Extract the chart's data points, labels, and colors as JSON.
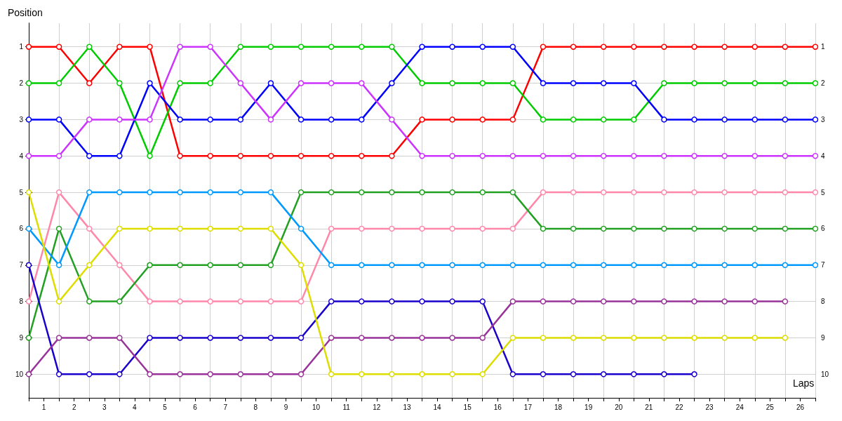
{
  "chart_data": {
    "type": "line",
    "xlabel": "Laps",
    "ylabel": "Position",
    "marker": "circle",
    "grid": true,
    "x": [
      0,
      1,
      2,
      3,
      4,
      5,
      6,
      7,
      8,
      9,
      10,
      11,
      12,
      13,
      14,
      15,
      16,
      17,
      18,
      19,
      20,
      21,
      22,
      23,
      24,
      25,
      26
    ],
    "xlim": [
      0,
      26
    ],
    "xticks": [
      {
        "value": 0,
        "label": null
      },
      {
        "value": 0.5,
        "label": "1"
      },
      {
        "value": 1,
        "label": null
      },
      {
        "value": 1.5,
        "label": "2"
      },
      {
        "value": 2,
        "label": null
      },
      {
        "value": 2.5,
        "label": "3"
      },
      {
        "value": 3,
        "label": null
      },
      {
        "value": 3.5,
        "label": "4"
      },
      {
        "value": 4,
        "label": null
      },
      {
        "value": 4.5,
        "label": "5"
      },
      {
        "value": 5,
        "label": null
      },
      {
        "value": 5.5,
        "label": "6"
      },
      {
        "value": 6,
        "label": null
      },
      {
        "value": 6.5,
        "label": "7"
      },
      {
        "value": 7,
        "label": null
      },
      {
        "value": 7.5,
        "label": "8"
      },
      {
        "value": 8,
        "label": null
      },
      {
        "value": 8.5,
        "label": "9"
      },
      {
        "value": 9,
        "label": null
      },
      {
        "value": 9.5,
        "label": "10"
      },
      {
        "value": 10,
        "label": null
      },
      {
        "value": 10.5,
        "label": "11"
      },
      {
        "value": 11,
        "label": null
      },
      {
        "value": 11.5,
        "label": "12"
      },
      {
        "value": 12,
        "label": null
      },
      {
        "value": 12.5,
        "label": "13"
      },
      {
        "value": 13,
        "label": null
      },
      {
        "value": 13.5,
        "label": "14"
      },
      {
        "value": 14,
        "label": null
      },
      {
        "value": 14.5,
        "label": "15"
      },
      {
        "value": 15,
        "label": null
      },
      {
        "value": 15.5,
        "label": "16"
      },
      {
        "value": 16,
        "label": null
      },
      {
        "value": 16.5,
        "label": "17"
      },
      {
        "value": 17,
        "label": null
      },
      {
        "value": 17.5,
        "label": "18"
      },
      {
        "value": 18,
        "label": null
      },
      {
        "value": 18.5,
        "label": "19"
      },
      {
        "value": 19,
        "label": null
      },
      {
        "value": 19.5,
        "label": "20"
      },
      {
        "value": 20,
        "label": null
      },
      {
        "value": 20.5,
        "label": "21"
      },
      {
        "value": 21,
        "label": null
      },
      {
        "value": 21.5,
        "label": "22"
      },
      {
        "value": 22,
        "label": null
      },
      {
        "value": 22.5,
        "label": "23"
      },
      {
        "value": 23,
        "label": null
      },
      {
        "value": 23.5,
        "label": "24"
      },
      {
        "value": 24,
        "label": null
      },
      {
        "value": 24.5,
        "label": "25"
      },
      {
        "value": 25,
        "label": null
      },
      {
        "value": 25.5,
        "label": "26"
      },
      {
        "value": 26,
        "label": null
      }
    ],
    "ylim": [
      10.65,
      0.35
    ],
    "yticks": [
      1,
      2,
      3,
      4,
      5,
      6,
      7,
      8,
      9,
      10
    ],
    "y2lim": [
      10.65,
      0.35
    ],
    "y2ticks": [
      1,
      2,
      3,
      4,
      5,
      6,
      7,
      8,
      9,
      10
    ],
    "series": [
      {
        "color": "#ff0000",
        "values": [
          1,
          1,
          2,
          1,
          1,
          4,
          4,
          4,
          4,
          4,
          4,
          4,
          4,
          3,
          3,
          3,
          3,
          1,
          1,
          1,
          1,
          1,
          1,
          1,
          1,
          1,
          1
        ]
      },
      {
        "color": "#00cc00",
        "values": [
          2,
          2,
          1,
          2,
          4,
          2,
          2,
          1,
          1,
          1,
          1,
          1,
          1,
          2,
          2,
          2,
          2,
          3,
          3,
          3,
          3,
          2,
          2,
          2,
          2,
          2,
          2
        ]
      },
      {
        "color": "#0000ff",
        "values": [
          3,
          3,
          4,
          4,
          2,
          3,
          3,
          3,
          2,
          3,
          3,
          3,
          2,
          1,
          1,
          1,
          1,
          2,
          2,
          2,
          2,
          3,
          3,
          3,
          3,
          3,
          3
        ]
      },
      {
        "color": "#cc33ff",
        "values": [
          4,
          4,
          3,
          3,
          3,
          1,
          1,
          2,
          3,
          2,
          2,
          2,
          3,
          4,
          4,
          4,
          4,
          4,
          4,
          4,
          4,
          4,
          4,
          4,
          4,
          4,
          4
        ]
      },
      {
        "color": "#ff88aa",
        "values": [
          8,
          5,
          6,
          7,
          8,
          8,
          8,
          8,
          8,
          8,
          6,
          6,
          6,
          6,
          6,
          6,
          6,
          5,
          5,
          5,
          5,
          5,
          5,
          5,
          5,
          5,
          5
        ]
      },
      {
        "color": "#22a022",
        "values": [
          9,
          6,
          8,
          8,
          7,
          7,
          7,
          7,
          7,
          5,
          5,
          5,
          5,
          5,
          5,
          5,
          5,
          6,
          6,
          6,
          6,
          6,
          6,
          6,
          6,
          6,
          6
        ]
      },
      {
        "color": "#0099ff",
        "values": [
          6,
          7,
          5,
          5,
          5,
          5,
          5,
          5,
          5,
          6,
          7,
          7,
          7,
          7,
          7,
          7,
          7,
          7,
          7,
          7,
          7,
          7,
          7,
          7,
          7,
          7,
          7
        ]
      },
      {
        "color": "#1a00cc",
        "values": [
          7,
          10,
          10,
          10,
          9,
          9,
          9,
          9,
          9,
          9,
          8,
          8,
          8,
          8,
          8,
          8,
          10,
          10,
          10,
          10,
          10,
          10,
          10,
          null,
          null,
          null,
          null
        ]
      },
      {
        "color": "#993399",
        "values": [
          10,
          9,
          9,
          9,
          10,
          10,
          10,
          10,
          10,
          10,
          9,
          9,
          9,
          9,
          9,
          9,
          8,
          8,
          8,
          8,
          8,
          8,
          8,
          8,
          8,
          8,
          null
        ]
      },
      {
        "color": "#dddd00",
        "values": [
          5,
          8,
          7,
          6,
          6,
          6,
          6,
          6,
          6,
          7,
          10,
          10,
          10,
          10,
          10,
          10,
          9,
          9,
          9,
          9,
          9,
          9,
          9,
          9,
          9,
          9,
          null
        ]
      }
    ]
  }
}
